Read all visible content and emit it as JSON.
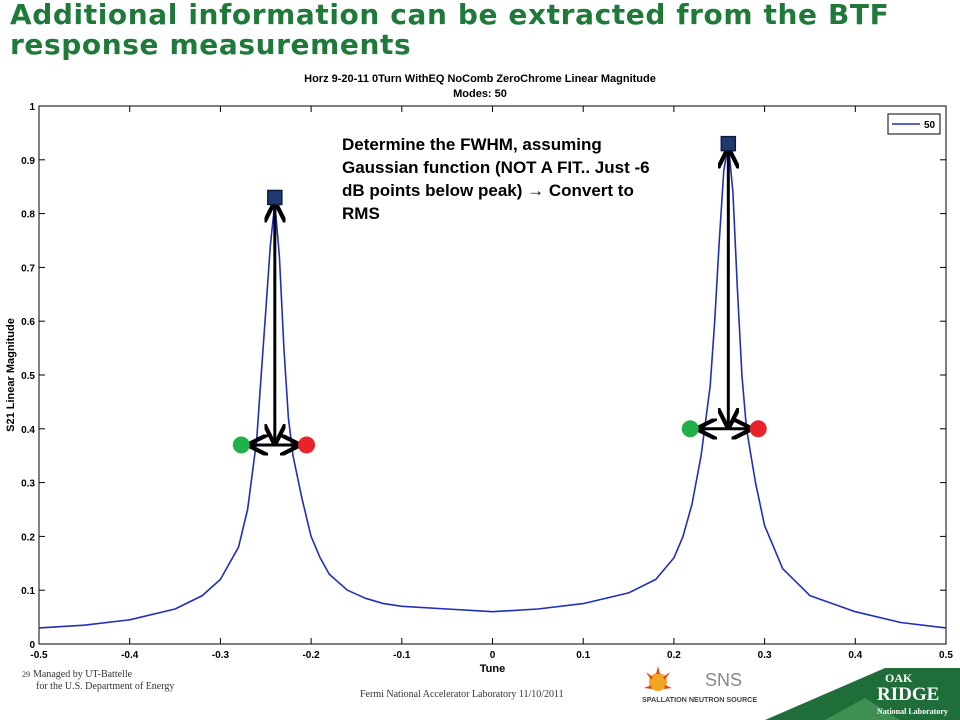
{
  "slide": {
    "title": "Additional information can be extracted from the BTF response measurements",
    "annotation": "Determine the FWHM, assuming Gaussian function (NOT A FIT.. Just -6 dB points below peak) → Convert to RMS"
  },
  "footer": {
    "page_number": "29",
    "managed_by": "Managed by UT-Battelle",
    "for_doe": "for the U.S. Department of Energy",
    "center": "Fermi National Accelerator Laboratory 11/10/2011"
  },
  "logos": {
    "sns_text": "SPALLATION NEUTRON SOURCE",
    "ornl_line1": "OAK",
    "ornl_line2": "RIDGE",
    "ornl_line3": "National Laboratory"
  },
  "colors": {
    "title_green": "#1f7a3a",
    "series_blue": "#1f2fb8",
    "marker_square": "#1f3a6e",
    "marker_green": "#22b04b",
    "marker_red": "#e8232a"
  },
  "chart_data": {
    "type": "line",
    "title": "Horz 9-20-11 0Turn WithEQ NoComb ZeroChrome Linear Magnitude",
    "subtitle": "Modes: 50",
    "xlabel": "Tune",
    "ylabel": "S21 Linear Magnitude",
    "xlim": [
      -0.5,
      0.5
    ],
    "ylim": [
      0,
      1
    ],
    "xticks": [
      "-0.5",
      "-0.4",
      "-0.3",
      "-0.2",
      "-0.1",
      "0",
      "0.1",
      "0.2",
      "0.3",
      "0.4",
      "0.5"
    ],
    "yticks": [
      "0",
      "0.1",
      "0.2",
      "0.3",
      "0.4",
      "0.5",
      "0.6",
      "0.7",
      "0.8",
      "0.9",
      "1"
    ],
    "grid": false,
    "legend_position": "top-right",
    "series": [
      {
        "name": "50",
        "x": [
          -0.5,
          -0.45,
          -0.4,
          -0.35,
          -0.32,
          -0.3,
          -0.28,
          -0.27,
          -0.26,
          -0.255,
          -0.25,
          -0.245,
          -0.24,
          -0.235,
          -0.23,
          -0.225,
          -0.22,
          -0.21,
          -0.2,
          -0.19,
          -0.18,
          -0.16,
          -0.14,
          -0.12,
          -0.1,
          -0.05,
          0,
          0.05,
          0.1,
          0.15,
          0.18,
          0.2,
          0.21,
          0.22,
          0.23,
          0.24,
          0.245,
          0.25,
          0.255,
          0.26,
          0.265,
          0.27,
          0.275,
          0.28,
          0.29,
          0.3,
          0.32,
          0.35,
          0.4,
          0.45,
          0.5
        ],
        "y": [
          0.03,
          0.035,
          0.045,
          0.065,
          0.09,
          0.12,
          0.18,
          0.25,
          0.38,
          0.5,
          0.62,
          0.74,
          0.82,
          0.72,
          0.55,
          0.42,
          0.35,
          0.27,
          0.2,
          0.16,
          0.13,
          0.1,
          0.085,
          0.075,
          0.07,
          0.065,
          0.06,
          0.065,
          0.075,
          0.095,
          0.12,
          0.16,
          0.2,
          0.26,
          0.35,
          0.48,
          0.6,
          0.75,
          0.88,
          0.93,
          0.84,
          0.66,
          0.5,
          0.4,
          0.3,
          0.22,
          0.14,
          0.09,
          0.06,
          0.04,
          0.03
        ]
      }
    ],
    "peak_markers": [
      {
        "x": -0.24,
        "y": 0.83
      },
      {
        "x": 0.26,
        "y": 0.93
      }
    ],
    "half_width_markers": [
      {
        "x_left": -0.277,
        "x_right": -0.205,
        "y": 0.37
      },
      {
        "x_left": 0.218,
        "x_right": 0.293,
        "y": 0.4
      }
    ]
  }
}
